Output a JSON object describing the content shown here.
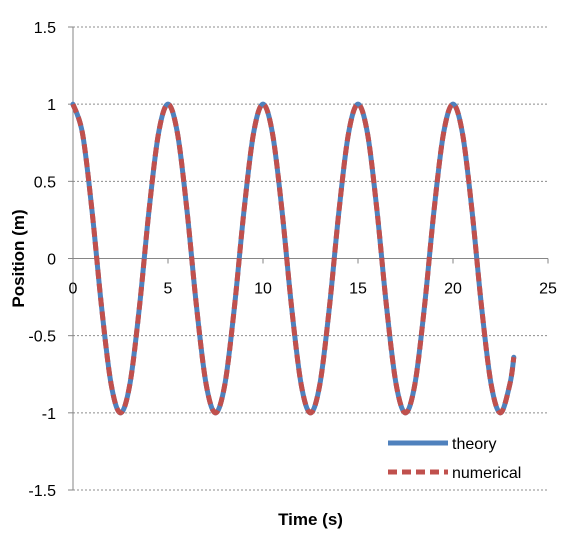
{
  "chart_data": {
    "type": "line",
    "title": "",
    "xlabel": "Time (s)",
    "ylabel": "Position (m)",
    "xlim": [
      0,
      25
    ],
    "ylim": [
      -1.5,
      1.5
    ],
    "x_ticks": [
      0,
      5,
      10,
      15,
      20,
      25
    ],
    "y_ticks": [
      -1.5,
      -1,
      -0.5,
      0,
      0.5,
      1,
      1.5
    ],
    "x_tick_labels": [
      "0",
      "5",
      "10",
      "15",
      "20",
      "25"
    ],
    "y_tick_labels": [
      "-1.5",
      "-1",
      "-0.5",
      "0",
      "0.5",
      "1",
      "1.5"
    ],
    "grid": "horizontal",
    "legend_position": "bottom-right",
    "series": [
      {
        "name": "theory",
        "color": "#4F81BD",
        "style": "solid",
        "x": [
          0,
          0.5,
          1,
          1.5,
          2,
          2.5,
          3,
          3.5,
          4,
          4.5,
          5,
          5.5,
          6,
          6.5,
          7,
          7.5,
          8,
          8.5,
          9,
          9.5,
          10,
          10.5,
          11,
          11.5,
          12,
          12.5,
          13,
          13.5,
          14,
          14.5,
          15,
          15.5,
          16,
          16.5,
          17,
          17.5,
          18,
          18.5,
          19,
          19.5,
          20,
          20.5,
          21,
          21.5,
          22,
          22.5,
          23,
          23.2
        ],
        "y": [
          1,
          0.81,
          0.31,
          -0.31,
          -0.81,
          -1,
          -0.81,
          -0.31,
          0.31,
          0.81,
          1,
          0.81,
          0.31,
          -0.31,
          -0.81,
          -1,
          -0.81,
          -0.31,
          0.31,
          0.81,
          1,
          0.81,
          0.31,
          -0.31,
          -0.81,
          -1,
          -0.81,
          -0.31,
          0.31,
          0.81,
          1,
          0.81,
          0.31,
          -0.31,
          -0.81,
          -1,
          -0.81,
          -0.31,
          0.31,
          0.81,
          1,
          0.81,
          0.31,
          -0.31,
          -0.81,
          -1,
          -0.81,
          -0.64
        ]
      },
      {
        "name": "numerical",
        "color": "#C0504D",
        "style": "dashed",
        "x": [
          0,
          0.5,
          1,
          1.5,
          2,
          2.5,
          3,
          3.5,
          4,
          4.5,
          5,
          5.5,
          6,
          6.5,
          7,
          7.5,
          8,
          8.5,
          9,
          9.5,
          10,
          10.5,
          11,
          11.5,
          12,
          12.5,
          13,
          13.5,
          14,
          14.5,
          15,
          15.5,
          16,
          16.5,
          17,
          17.5,
          18,
          18.5,
          19,
          19.5,
          20,
          20.5,
          21,
          21.5,
          22,
          22.5,
          23,
          23.2
        ],
        "y": [
          1,
          0.81,
          0.31,
          -0.31,
          -0.81,
          -1,
          -0.81,
          -0.31,
          0.31,
          0.81,
          1,
          0.81,
          0.31,
          -0.31,
          -0.81,
          -1,
          -0.81,
          -0.31,
          0.31,
          0.81,
          1,
          0.81,
          0.31,
          -0.31,
          -0.81,
          -1,
          -0.81,
          -0.31,
          0.31,
          0.81,
          1,
          0.81,
          0.31,
          -0.31,
          -0.81,
          -1,
          -0.81,
          -0.31,
          0.31,
          0.81,
          1,
          0.81,
          0.31,
          -0.31,
          -0.81,
          -1,
          -0.81,
          -0.64
        ]
      }
    ]
  }
}
